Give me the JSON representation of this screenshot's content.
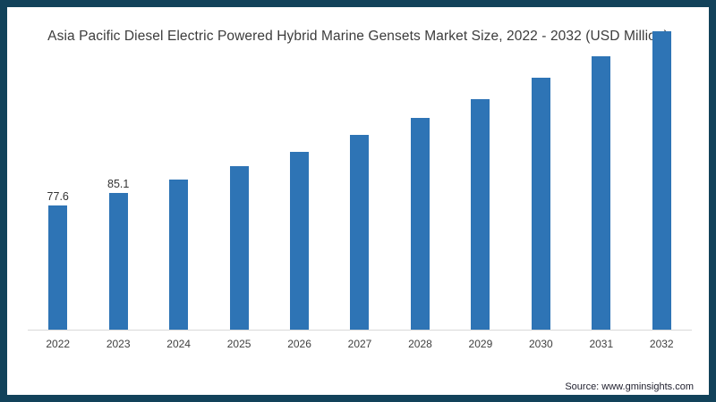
{
  "frame": {
    "border_color": "#12425A",
    "background": "#ffffff"
  },
  "title": "Asia Pacific Diesel Electric Powered Hybrid Marine Gensets Market Size, 2022 - 2032 (USD Million)",
  "source_credit": "Source: www.gminsights.com",
  "chart_data": {
    "type": "bar",
    "title": "Asia Pacific Diesel Electric Powered Hybrid Marine Gensets Market Size, 2022 - 2032 (USD Million)",
    "categories": [
      "2022",
      "2023",
      "2024",
      "2025",
      "2026",
      "2027",
      "2028",
      "2029",
      "2030",
      "2031",
      "2032"
    ],
    "values": [
      77.6,
      85.1,
      93.5,
      102.1,
      111.0,
      121.6,
      132.2,
      143.9,
      157.3,
      170.7,
      185.8
    ],
    "data_labels": [
      "77.6",
      "85.1",
      null,
      null,
      null,
      null,
      null,
      null,
      null,
      null,
      null
    ],
    "xlabel": "",
    "ylabel": "",
    "ylim": [
      0,
      200
    ],
    "grid": false,
    "legend_position": "none",
    "bar_color": "#2E74B5",
    "axis_line_color": "#D9D9D9",
    "label_color": "#333333",
    "tick_color": "#404040"
  }
}
